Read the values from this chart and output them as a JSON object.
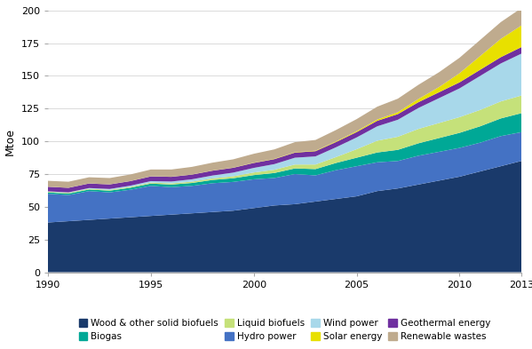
{
  "years": [
    1990,
    1991,
    1992,
    1993,
    1994,
    1995,
    1996,
    1997,
    1998,
    1999,
    2000,
    2001,
    2002,
    2003,
    2004,
    2005,
    2006,
    2007,
    2008,
    2009,
    2010,
    2011,
    2012,
    2013
  ],
  "wood_solid_biofuels": [
    38,
    39,
    40,
    41,
    42,
    43,
    44,
    45,
    46,
    47,
    49,
    51,
    52,
    54,
    56,
    58,
    62,
    64,
    67,
    70,
    73,
    77,
    81,
    85
  ],
  "biogas": [
    1.0,
    1.1,
    1.2,
    1.3,
    1.5,
    1.7,
    2.0,
    2.2,
    2.5,
    2.8,
    3.2,
    3.8,
    4.3,
    4.8,
    5.5,
    6.5,
    7.5,
    8.5,
    9.5,
    10.5,
    11.5,
    12.5,
    13.5,
    14.5
  ],
  "liquid_biofuels": [
    0.5,
    0.5,
    0.6,
    0.6,
    0.7,
    0.8,
    0.9,
    1.0,
    1.2,
    1.5,
    2.0,
    2.5,
    3.0,
    3.5,
    4.5,
    6.5,
    9.0,
    10.0,
    11.0,
    11.5,
    12.0,
    12.5,
    13.0,
    13.5
  ],
  "hydro_power": [
    22,
    20,
    22,
    20,
    21,
    23,
    21,
    21,
    22,
    22,
    22,
    21,
    23,
    20,
    22,
    23,
    22,
    21,
    22,
    22,
    22,
    22,
    23,
    22
  ],
  "wind_power": [
    0.3,
    0.4,
    0.5,
    0.7,
    0.9,
    1.1,
    1.4,
    1.8,
    2.2,
    2.8,
    3.5,
    4.3,
    5.2,
    6.2,
    7.5,
    9.0,
    11.0,
    13.0,
    16.0,
    19.0,
    22.0,
    26.0,
    29.0,
    32.0
  ],
  "solar_energy": [
    0.05,
    0.05,
    0.06,
    0.06,
    0.07,
    0.08,
    0.09,
    0.1,
    0.12,
    0.15,
    0.2,
    0.25,
    0.3,
    0.35,
    0.5,
    0.7,
    1.0,
    1.5,
    2.5,
    4.0,
    7.0,
    10.5,
    14.0,
    16.5
  ],
  "geothermal_energy": [
    3.5,
    3.5,
    3.5,
    3.5,
    3.5,
    3.6,
    3.6,
    3.6,
    3.7,
    3.7,
    3.8,
    3.8,
    3.9,
    4.0,
    4.0,
    4.1,
    4.2,
    4.3,
    4.4,
    4.5,
    4.6,
    4.7,
    4.8,
    5.0
  ],
  "renewable_wastes": [
    4.5,
    4.6,
    4.7,
    4.8,
    5.0,
    5.2,
    5.5,
    5.8,
    6.0,
    6.3,
    6.8,
    7.2,
    7.7,
    8.2,
    8.7,
    9.2,
    9.8,
    10.3,
    10.8,
    11.3,
    11.8,
    12.3,
    12.8,
    13.3
  ],
  "colors": {
    "wood_solid_biofuels": "#1a3a6b",
    "hydro_power": "#4472c4",
    "biogas": "#00a896",
    "liquid_biofuels": "#c5e17a",
    "wind_power": "#a8d8ea",
    "solar_energy": "#e8e000",
    "geothermal_energy": "#7030a0",
    "renewable_wastes": "#bfab8e"
  },
  "ylabel": "Mtoe",
  "ylim": [
    0,
    200
  ],
  "yticks": [
    0,
    25,
    50,
    75,
    100,
    125,
    150,
    175,
    200
  ],
  "xticks": [
    1990,
    1995,
    2000,
    2005,
    2010,
    2013
  ],
  "background_color": "#ffffff",
  "legend_row1": [
    "wood_solid_biofuels",
    "biogas",
    "liquid_biofuels",
    "hydro_power"
  ],
  "legend_row2": [
    "wind_power",
    "solar_energy",
    "geothermal_energy",
    "renewable_wastes"
  ],
  "legend_labels": {
    "wood_solid_biofuels": "Wood & other solid biofuels",
    "biogas": "Biogas",
    "liquid_biofuels": "Liquid biofuels",
    "hydro_power": "Hydro power",
    "wind_power": "Wind power",
    "solar_energy": "Solar energy",
    "geothermal_energy": "Geothermal energy",
    "renewable_wastes": "Renewable wastes"
  }
}
